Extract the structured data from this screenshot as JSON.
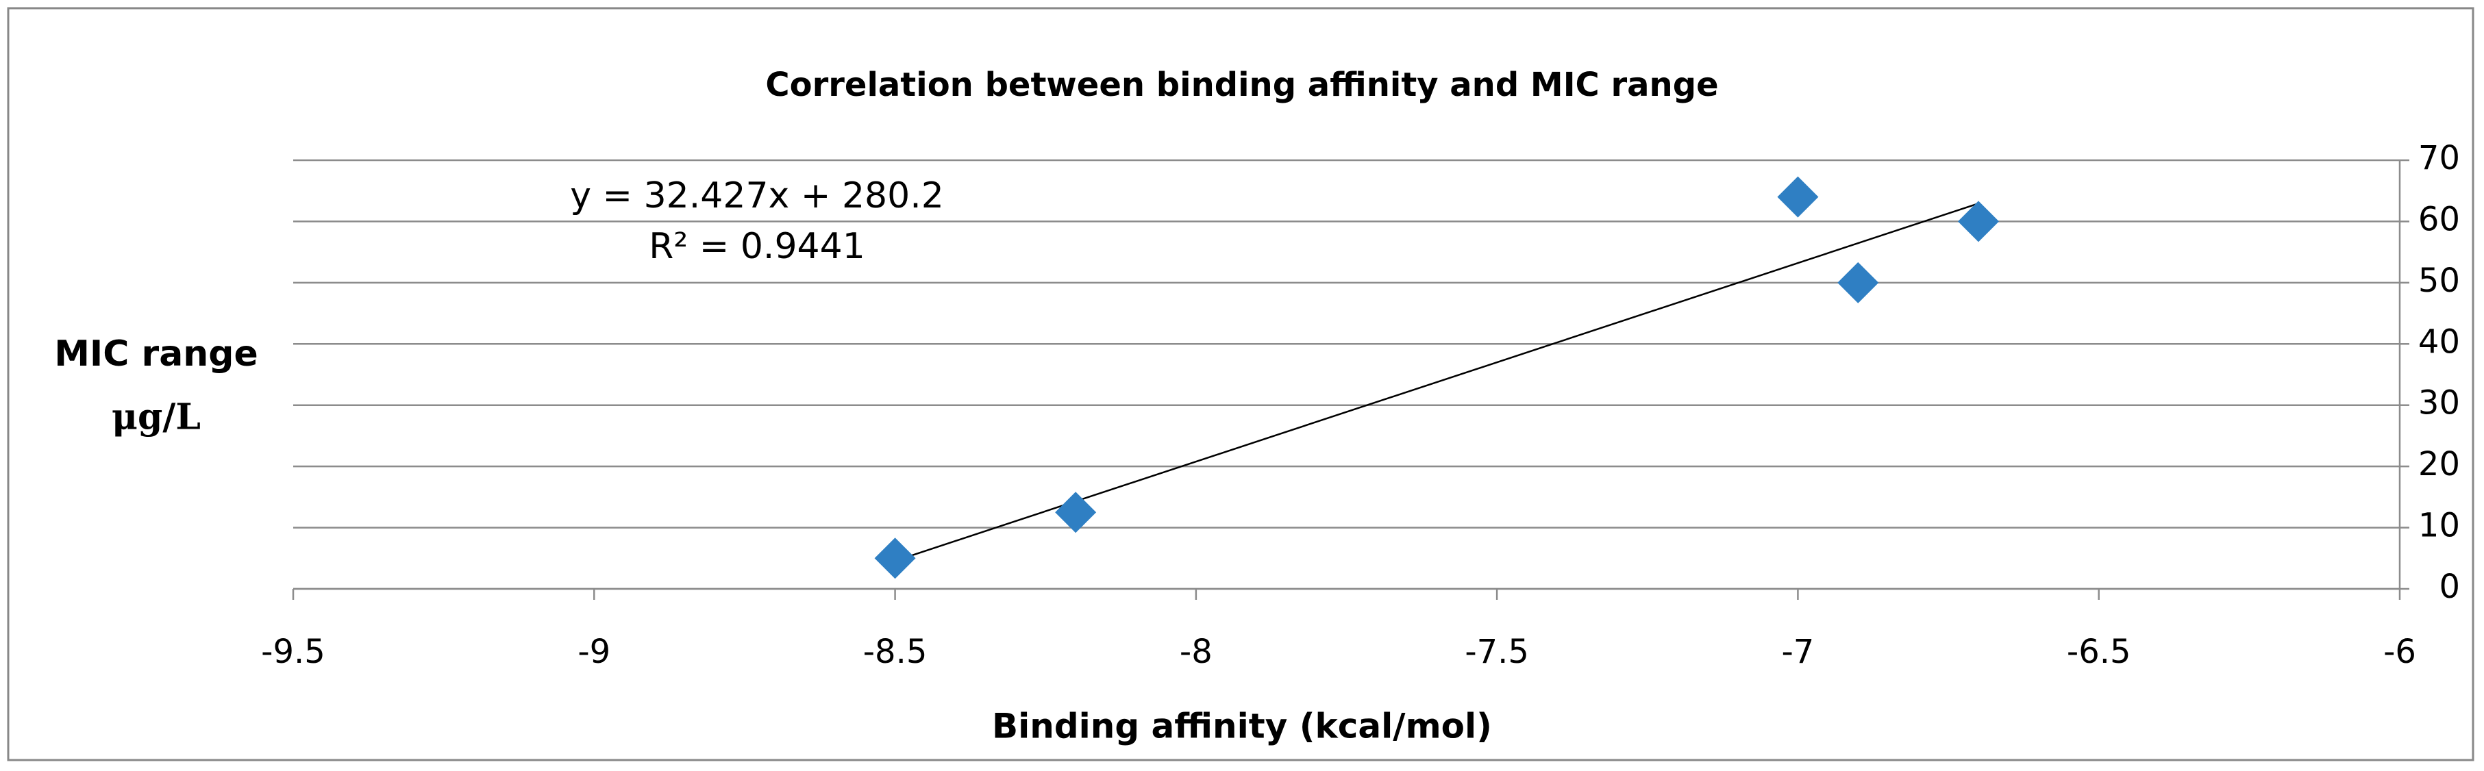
{
  "chart_data": {
    "type": "scatter",
    "title": "Correlation between binding affinity and MIC range",
    "xlabel": "Binding affinity (kcal/mol)",
    "ylabel_lines": [
      "MIC range",
      "μg/L"
    ],
    "x": [
      -8.5,
      -8.2,
      -7,
      -6.9,
      -6.7
    ],
    "series": [
      {
        "name": "MIC range",
        "color": "#2f7fc3",
        "values": [
          5,
          12.5,
          64,
          50,
          60
        ]
      }
    ],
    "xlim": [
      -9.5,
      -6
    ],
    "xticks": [
      -9.5,
      -9,
      -8.5,
      -8,
      -7.5,
      -7,
      -6.5,
      -6
    ],
    "ylim": [
      0,
      70
    ],
    "yticks": [
      0,
      10,
      20,
      30,
      40,
      50,
      60,
      70
    ],
    "y_axis_side": "right",
    "grid": true,
    "trendline": {
      "equation": "y = 32.427x + 280.2",
      "r_squared": "R² = 0.9441",
      "slope": 32.427,
      "intercept": 280.2
    }
  }
}
